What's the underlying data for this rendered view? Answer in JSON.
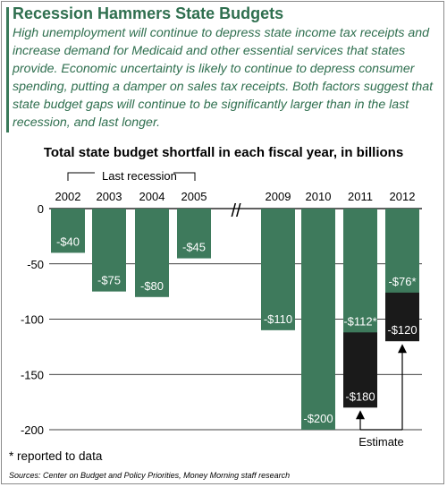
{
  "header": {
    "title": "Recession Hammers State Budgets",
    "subtitle": "High unemployment will continue to depress state income tax receipts and increase demand for Medicaid and other essential services that states provide.  Economic uncertainty is likely to continue to depress consumer spending, putting a damper on sales tax receipts. Both factors suggest that state budget gaps will continue to be significantly larger than in the last recession, and last longer."
  },
  "chart_data": {
    "type": "bar",
    "title": "Total state budget shortfall in each fiscal year, in billions",
    "categories": [
      "2002",
      "2003",
      "2004",
      "2005",
      "2009",
      "2010",
      "2011",
      "2012"
    ],
    "series": [
      {
        "values": [
          -40,
          -75,
          -80,
          -45,
          -110,
          -200,
          -112,
          -76
        ]
      },
      {
        "values": [
          null,
          null,
          null,
          null,
          null,
          null,
          -180,
          -120
        ]
      }
    ],
    "data_labels": [
      "-$40",
      "-$75",
      "-$80",
      "-$45",
      "-$110",
      "-$200",
      "-$112*",
      "-$76*"
    ],
    "estimate_labels": [
      null,
      null,
      null,
      null,
      null,
      null,
      "-$180",
      "-$120"
    ],
    "y_ticks": [
      "0",
      "-50",
      "-100",
      "-150",
      "-200"
    ],
    "ylim": [
      -200,
      0
    ],
    "annotations": {
      "last_recession": "Last recession",
      "estimate": "Estimate",
      "axis_break": "//"
    },
    "colors": {
      "reported": "#3e7a5c",
      "estimate": "#1a1a1a",
      "grid": "#000000"
    },
    "grid": true
  },
  "footer": {
    "footnote": "* reported to data",
    "sources": "Sources: Center on Budget and Policy Priorities, Money Morning staff research"
  }
}
